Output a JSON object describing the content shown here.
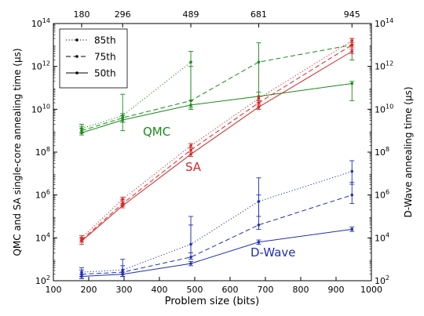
{
  "chart_data": {
    "type": "line",
    "xlabel": "Problem size (bits)",
    "ylabel_left": "QMC and SA single-core annealing time (μs)",
    "ylabel_right": "D-Wave annealing time (μs)",
    "xlim": [
      100,
      1000
    ],
    "x_ticks": [
      100,
      200,
      300,
      400,
      500,
      600,
      700,
      800,
      900,
      1000
    ],
    "top_ticks": [
      180,
      296,
      489,
      681,
      945
    ],
    "ylim_log10": [
      2,
      14
    ],
    "y_tick_exponents": [
      2,
      4,
      6,
      8,
      10,
      12,
      14
    ],
    "y_scale": "log",
    "legend": {
      "position": "top-left",
      "entries": [
        {
          "label": "85th",
          "style": "dotted"
        },
        {
          "label": "75th",
          "style": "dashed"
        },
        {
          "label": "50th",
          "style": "solid"
        }
      ]
    },
    "annotations": [
      {
        "text": "QMC",
        "color": "#1a8a1a"
      },
      {
        "text": "SA",
        "color": "#d62728"
      },
      {
        "text": "D-Wave",
        "color": "#1f2fb3"
      }
    ],
    "groups": [
      {
        "name": "QMC",
        "color": "#1a8a1a",
        "x": [
          180,
          296,
          489,
          681,
          945
        ],
        "series": [
          {
            "percentile": "85th",
            "style": "dotted",
            "log10_values": [
              9.1,
              9.7,
              12.2,
              null,
              null
            ],
            "errors": [
              [
                8.9,
                9.3
              ],
              [
                9.0,
                10.7
              ],
              [
                10.0,
                12.7
              ],
              null,
              null
            ]
          },
          {
            "percentile": "75th",
            "style": "dashed",
            "log10_values": [
              9.0,
              9.6,
              10.4,
              12.2,
              13.0
            ],
            "errors": [
              [
                8.9,
                9.2
              ],
              [
                9.4,
                9.8
              ],
              [
                10.0,
                12.0
              ],
              [
                10.0,
                13.1
              ],
              [
                12.3,
                13.3
              ]
            ]
          },
          {
            "percentile": "50th",
            "style": "solid",
            "log10_values": [
              8.9,
              9.5,
              10.2,
              10.6,
              11.2
            ],
            "errors": [
              [
                8.8,
                9.1
              ],
              [
                9.4,
                9.7
              ],
              [
                10.1,
                10.4
              ],
              [
                10.4,
                10.8
              ],
              [
                10.4,
                11.3
              ]
            ]
          }
        ]
      },
      {
        "name": "SA",
        "color": "#d62728",
        "x": [
          180,
          296,
          489,
          681,
          945
        ],
        "series": [
          {
            "percentile": "85th",
            "style": "dotted",
            "log10_values": [
              4.0,
              5.8,
              8.3,
              10.5,
              13.2
            ],
            "errors": [
              [
                3.9,
                4.1
              ],
              [
                5.6,
                5.9
              ],
              [
                8.2,
                8.4
              ],
              [
                10.3,
                10.6
              ],
              [
                13.0,
                13.3
              ]
            ]
          },
          {
            "percentile": "75th",
            "style": "dashed",
            "log10_values": [
              3.9,
              5.6,
              8.1,
              10.3,
              13.0
            ],
            "errors": [
              [
                3.8,
                4.0
              ],
              [
                5.5,
                5.8
              ],
              [
                8.0,
                8.2
              ],
              [
                10.2,
                10.4
              ],
              [
                12.8,
                13.1
              ]
            ]
          },
          {
            "percentile": "50th",
            "style": "solid",
            "log10_values": [
              3.85,
              5.5,
              7.9,
              10.1,
              12.7
            ],
            "errors": [
              [
                3.7,
                4.0
              ],
              [
                5.4,
                5.7
              ],
              [
                7.8,
                8.0
              ],
              [
                10.0,
                10.2
              ],
              [
                12.6,
                12.9
              ]
            ]
          }
        ]
      },
      {
        "name": "D-Wave",
        "color": "#1f2fb3",
        "x": [
          180,
          296,
          489,
          681,
          945
        ],
        "series": [
          {
            "percentile": "85th",
            "style": "dotted",
            "log10_values": [
              2.4,
              2.5,
              3.7,
              5.7,
              7.1
            ],
            "errors": [
              [
                2.2,
                2.6
              ],
              [
                2.3,
                2.7
              ],
              [
                3.3,
                5.0
              ],
              [
                5.0,
                6.8
              ],
              [
                6.5,
                7.6
              ]
            ]
          },
          {
            "percentile": "75th",
            "style": "dashed",
            "log10_values": [
              2.3,
              2.4,
              3.1,
              4.6,
              6.0
            ],
            "errors": [
              [
                2.1,
                2.5
              ],
              [
                2.2,
                3.0
              ],
              [
                3.0,
                4.6
              ],
              [
                4.4,
                6.0
              ],
              [
                5.6,
                6.6
              ]
            ]
          },
          {
            "percentile": "50th",
            "style": "solid",
            "log10_values": [
              2.2,
              2.3,
              2.8,
              3.8,
              4.4
            ],
            "errors": [
              [
                2.1,
                2.3
              ],
              [
                2.2,
                2.4
              ],
              [
                2.7,
                2.9
              ],
              [
                3.7,
                3.9
              ],
              [
                4.3,
                4.5
              ]
            ]
          }
        ]
      }
    ]
  }
}
